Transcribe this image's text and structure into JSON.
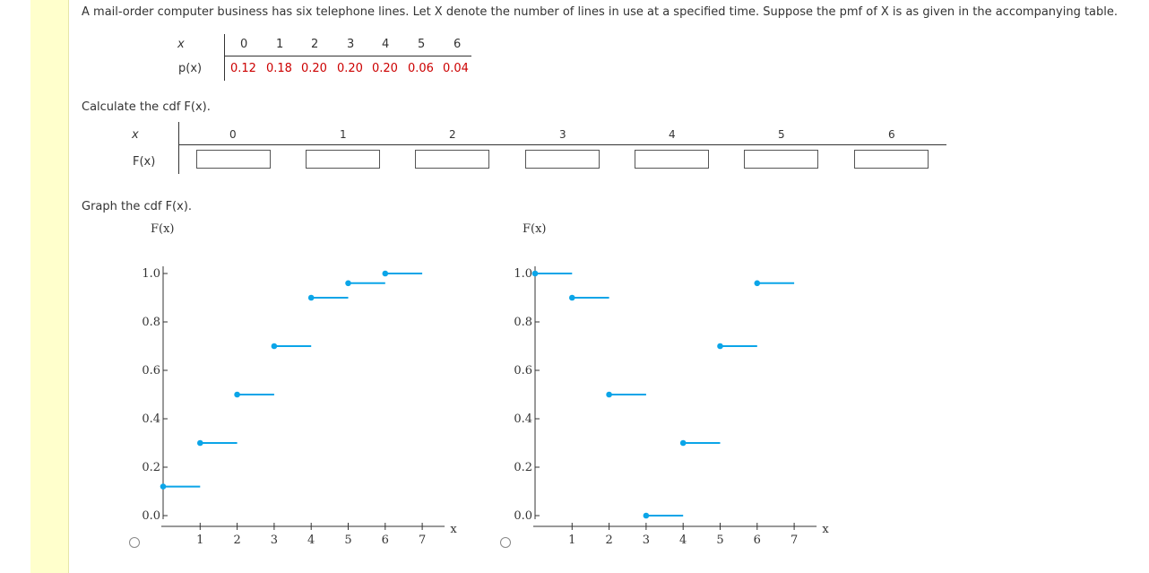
{
  "question_text": "A mail-order computer business has six telephone lines. Let X denote the number of lines in use at a specified time. Suppose the pmf of X is as given in the accompanying table.",
  "pmf_table": {
    "x_label": "x",
    "p_label": "p(x)",
    "x_values": [
      "0",
      "1",
      "2",
      "3",
      "4",
      "5",
      "6"
    ],
    "p_values": [
      "0.12",
      "0.18",
      "0.20",
      "0.20",
      "0.20",
      "0.06",
      "0.04"
    ]
  },
  "cdf_prompt": "Calculate the cdf F(x).",
  "cdf_table": {
    "x_label": "x",
    "f_label": "F(x)",
    "x_values": [
      "0",
      "1",
      "2",
      "3",
      "4",
      "5",
      "6"
    ],
    "inputs": [
      "",
      "",
      "",
      "",
      "",
      "",
      ""
    ]
  },
  "graph_prompt": "Graph the cdf F(x).",
  "colors": {
    "step": "#0ba5e8",
    "accent_red": "#cc0000",
    "sidebar": "#ffffcc"
  },
  "chart_data": [
    {
      "type": "line",
      "ylabel": "F(x)",
      "xlabel": "x",
      "x_ticks": [
        "1",
        "2",
        "3",
        "4",
        "5",
        "6",
        "7"
      ],
      "y_ticks": [
        "0.0",
        "0.2",
        "0.4",
        "0.6",
        "0.8",
        "1.0"
      ],
      "xlim": [
        0,
        7
      ],
      "ylim": [
        0,
        1
      ],
      "steps": [
        {
          "x0": 0,
          "x1": 1,
          "y": 0.12
        },
        {
          "x0": 1,
          "x1": 2,
          "y": 0.3
        },
        {
          "x0": 2,
          "x1": 3,
          "y": 0.5
        },
        {
          "x0": 3,
          "x1": 4,
          "y": 0.7
        },
        {
          "x0": 4,
          "x1": 5,
          "y": 0.9
        },
        {
          "x0": 5,
          "x1": 6,
          "y": 0.96
        },
        {
          "x0": 6,
          "x1": 7,
          "y": 1.0
        }
      ]
    },
    {
      "type": "line",
      "ylabel": "F(x)",
      "xlabel": "x",
      "x_ticks": [
        "1",
        "2",
        "3",
        "4",
        "5",
        "6",
        "7"
      ],
      "y_ticks": [
        "0.0",
        "0.2",
        "0.4",
        "0.6",
        "0.8",
        "1.0"
      ],
      "xlim": [
        0,
        7
      ],
      "ylim": [
        0,
        1
      ],
      "steps": [
        {
          "x0": 0,
          "x1": 1,
          "y": 1.0
        },
        {
          "x0": 1,
          "x1": 2,
          "y": 0.9
        },
        {
          "x0": 2,
          "x1": 3,
          "y": 0.5
        },
        {
          "x0": 3,
          "x1": 4,
          "y": 0.0
        },
        {
          "x0": 4,
          "x1": 5,
          "y": 0.3
        },
        {
          "x0": 5,
          "x1": 6,
          "y": 0.7
        },
        {
          "x0": 6,
          "x1": 7,
          "y": 0.96
        }
      ]
    }
  ]
}
